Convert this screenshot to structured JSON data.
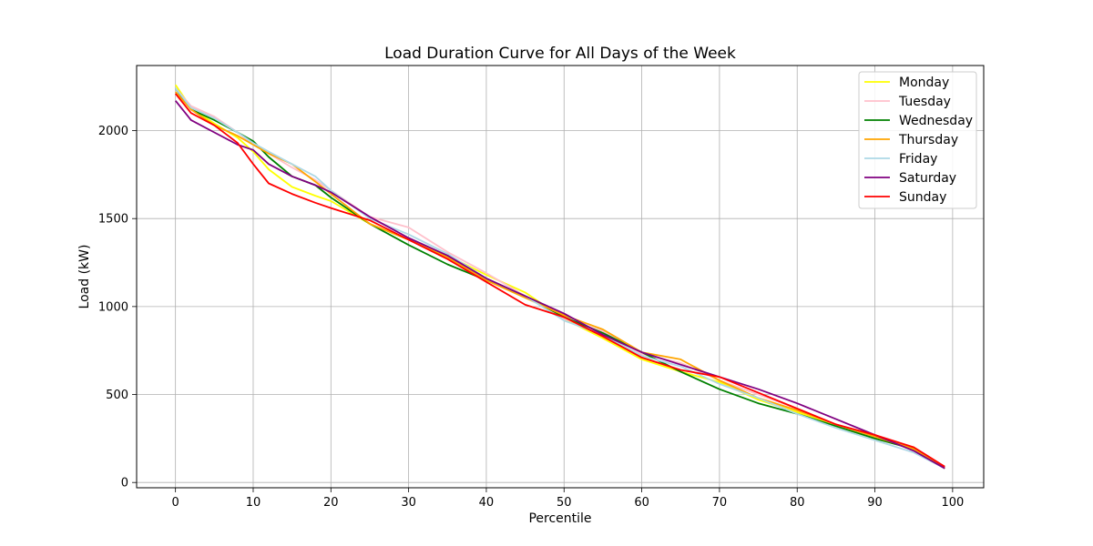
{
  "chart_data": {
    "type": "line",
    "title": "Load Duration Curve for All Days of the Week",
    "xlabel": "Percentile",
    "ylabel": "Load (kW)",
    "xlim": [
      -5,
      104
    ],
    "ylim": [
      -30,
      2370
    ],
    "xticks": [
      0,
      10,
      20,
      30,
      40,
      50,
      60,
      70,
      80,
      90,
      100
    ],
    "yticks": [
      0,
      500,
      1000,
      1500,
      2000
    ],
    "grid": true,
    "legend_position": "top-right",
    "x": [
      0,
      2,
      5,
      8,
      10,
      12,
      15,
      18,
      20,
      25,
      30,
      35,
      40,
      45,
      50,
      55,
      60,
      65,
      70,
      75,
      80,
      85,
      90,
      95,
      99
    ],
    "series": [
      {
        "name": "Monday",
        "color": "#ffff00",
        "values": [
          2260,
          2130,
          2040,
          1960,
          1880,
          1780,
          1680,
          1630,
          1600,
          1470,
          1380,
          1290,
          1180,
          1080,
          930,
          820,
          700,
          630,
          570,
          470,
          400,
          320,
          250,
          200,
          80
        ]
      },
      {
        "name": "Tuesday",
        "color": "#ffc0cb",
        "values": [
          2240,
          2140,
          2080,
          1990,
          1920,
          1870,
          1790,
          1720,
          1660,
          1510,
          1450,
          1310,
          1190,
          1060,
          930,
          860,
          730,
          680,
          580,
          500,
          420,
          330,
          250,
          190,
          80
        ]
      },
      {
        "name": "Wednesday",
        "color": "#008000",
        "values": [
          2240,
          2120,
          2060,
          1990,
          1940,
          1850,
          1740,
          1690,
          1620,
          1470,
          1350,
          1240,
          1150,
          1060,
          940,
          850,
          740,
          630,
          530,
          450,
          390,
          320,
          250,
          190,
          80
        ]
      },
      {
        "name": "Thursday",
        "color": "#ffa500",
        "values": [
          2220,
          2120,
          2030,
          1970,
          1920,
          1870,
          1810,
          1710,
          1640,
          1470,
          1380,
          1280,
          1150,
          1050,
          950,
          870,
          740,
          700,
          580,
          480,
          410,
          330,
          260,
          190,
          80
        ]
      },
      {
        "name": "Friday",
        "color": "#add8e6",
        "values": [
          2240,
          2130,
          2070,
          1990,
          1930,
          1880,
          1810,
          1740,
          1660,
          1500,
          1410,
          1300,
          1160,
          1060,
          920,
          840,
          720,
          660,
          560,
          480,
          390,
          310,
          240,
          170,
          80
        ]
      },
      {
        "name": "Saturday",
        "color": "#800080",
        "values": [
          2170,
          2060,
          1990,
          1920,
          1890,
          1810,
          1740,
          1690,
          1650,
          1510,
          1390,
          1290,
          1160,
          1060,
          960,
          840,
          740,
          670,
          600,
          530,
          450,
          360,
          270,
          180,
          80
        ]
      },
      {
        "name": "Sunday",
        "color": "#ff0000",
        "values": [
          2210,
          2100,
          2030,
          1930,
          1810,
          1700,
          1640,
          1590,
          1560,
          1490,
          1380,
          1270,
          1140,
          1010,
          940,
          830,
          710,
          640,
          600,
          510,
          420,
          330,
          270,
          200,
          90
        ]
      }
    ]
  }
}
